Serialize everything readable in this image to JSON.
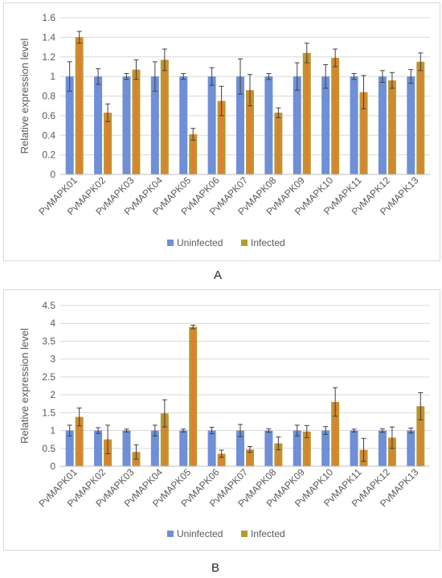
{
  "colors": {
    "uninfected": "#6f8fd6",
    "infected": "#b59b2c",
    "infected_highlight": "#e87a33",
    "grid": "#d9d9d9",
    "error": "#404040"
  },
  "chart_data": [
    {
      "type": "bar",
      "panel_label": "A",
      "ylabel": "Relative expression level",
      "ylim": [
        0,
        1.6
      ],
      "yticks": [
        "0",
        "0.2",
        "0.4",
        "0.6",
        "0.8",
        "1",
        "1.2",
        "1.4",
        "1.6"
      ],
      "legend_position": "bottom",
      "categories": [
        "PvMAPK01",
        "PvMAPK02",
        "PvMAPK03",
        "PvMAPK04",
        "PvMAPK05",
        "PvMAPK06",
        "PvMAPK07",
        "PvMAPK08",
        "PvMAPK09",
        "PvMAPK10",
        "PvMAPK11",
        "PvMAPK12",
        "PvMAPK13"
      ],
      "series": [
        {
          "name": "Uninfected",
          "values": [
            1,
            1,
            1,
            1,
            1,
            1,
            1,
            1,
            1,
            1,
            1,
            1,
            1
          ],
          "errors": [
            0.15,
            0.08,
            0.03,
            0.15,
            0.03,
            0.09,
            0.18,
            0.03,
            0.14,
            0.12,
            0.03,
            0.06,
            0.07
          ]
        },
        {
          "name": "Infected",
          "values": [
            1.4,
            0.63,
            1.07,
            1.17,
            0.41,
            0.75,
            0.86,
            0.63,
            1.24,
            1.19,
            0.84,
            0.96,
            1.15
          ],
          "errors": [
            0.06,
            0.09,
            0.1,
            0.11,
            0.06,
            0.15,
            0.16,
            0.05,
            0.1,
            0.09,
            0.17,
            0.08,
            0.09
          ]
        }
      ]
    },
    {
      "type": "bar",
      "panel_label": "B",
      "ylabel": "Relative expression level",
      "ylim": [
        0,
        4.5
      ],
      "yticks": [
        "0",
        "0.5",
        "1",
        "1.5",
        "2",
        "2.5",
        "3",
        "3.5",
        "4",
        "4.5"
      ],
      "legend_position": "bottom",
      "categories": [
        "PvMAPK01",
        "PvMAPK02",
        "PvMAPK03",
        "PvMAPK04",
        "PvMAPK05",
        "PvMAPK06",
        "PvMAPK07",
        "PvMAPK08",
        "PvMAPK09",
        "PvMAPK10",
        "PvMAPK11",
        "PvMAPK12",
        "PvMAPK13"
      ],
      "series": [
        {
          "name": "Uninfected",
          "values": [
            1,
            1,
            1,
            1,
            1,
            1,
            1,
            1,
            1,
            1,
            1,
            1,
            1
          ],
          "errors": [
            0.15,
            0.08,
            0.04,
            0.15,
            0.04,
            0.09,
            0.17,
            0.05,
            0.15,
            0.11,
            0.04,
            0.05,
            0.07
          ]
        },
        {
          "name": "Infected",
          "values": [
            1.38,
            0.75,
            0.4,
            1.48,
            3.9,
            0.35,
            0.47,
            0.64,
            0.97,
            1.8,
            0.46,
            0.8,
            1.68
          ],
          "errors": [
            0.25,
            0.4,
            0.2,
            0.38,
            0.05,
            0.1,
            0.08,
            0.18,
            0.17,
            0.4,
            0.32,
            0.3,
            0.38
          ]
        }
      ]
    }
  ]
}
